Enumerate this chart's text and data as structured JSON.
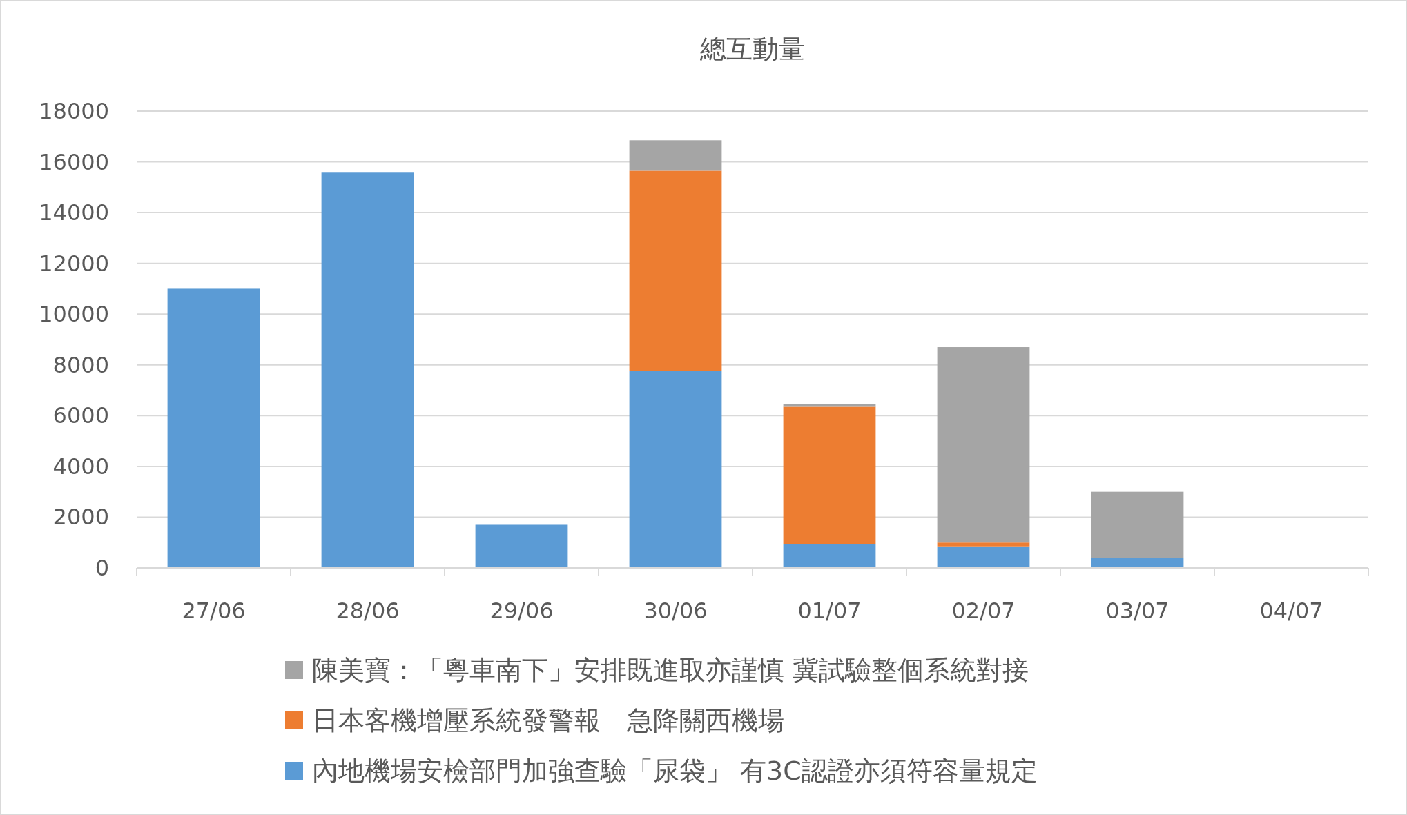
{
  "chart_data": {
    "type": "bar",
    "title": "總互動量",
    "stacked": true,
    "categories": [
      "27/06",
      "28/06",
      "29/06",
      "30/06",
      "01/07",
      "02/07",
      "03/07",
      "04/07"
    ],
    "series": [
      {
        "name": "內地機場安檢部門加強查驗「尿袋」 有3C認證亦須符容量規定",
        "color": "#5b9bd5",
        "values": [
          11000,
          15600,
          1700,
          7750,
          950,
          850,
          400,
          0
        ]
      },
      {
        "name": "日本客機增壓系統發警報　急降關西機場",
        "color": "#ed7d31",
        "values": [
          0,
          0,
          0,
          7900,
          5400,
          150,
          0,
          0
        ]
      },
      {
        "name": "陳美寶：「粵車南下」安排既進取亦謹慎 冀試驗整個系統對接",
        "color": "#a5a5a5",
        "values": [
          0,
          0,
          0,
          1200,
          100,
          7700,
          2600,
          0
        ]
      }
    ],
    "ylim": [
      0,
      18000
    ],
    "yticks": [
      0,
      2000,
      4000,
      6000,
      8000,
      10000,
      12000,
      14000,
      16000,
      18000
    ],
    "grid": "y",
    "legend": "bottom"
  }
}
